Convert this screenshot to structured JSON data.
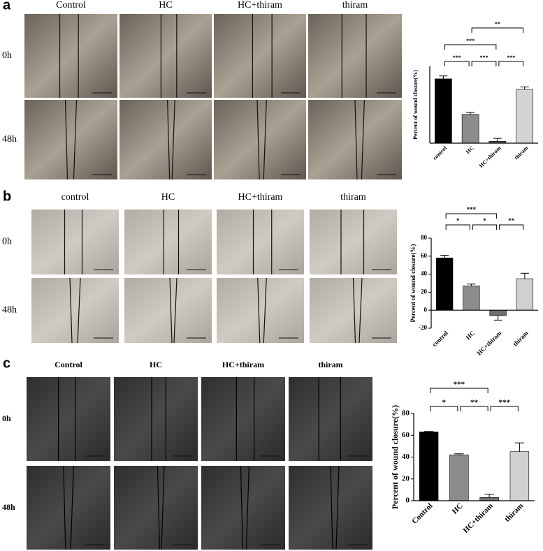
{
  "panels": [
    {
      "label": "a",
      "columns": [
        "Control",
        "HC",
        "HC+thiram",
        "thiram"
      ],
      "rows": [
        "0h",
        "48h"
      ]
    },
    {
      "label": "b",
      "columns": [
        "control",
        "HC",
        "HC+thiram",
        "thiram"
      ],
      "rows": [
        "0h",
        "48h"
      ]
    },
    {
      "label": "c",
      "columns": [
        "Control",
        "HC",
        "HC+thiram",
        "thiram"
      ],
      "rows": [
        "0h",
        "48h"
      ]
    }
  ],
  "chart_data": [
    {
      "type": "bar",
      "y_label": "Percent of wound closure(%)",
      "categories": [
        "control",
        "HC",
        "HC+thiram",
        "thiram"
      ],
      "values": [
        67,
        30,
        2,
        56
      ],
      "errors": [
        3,
        2,
        3,
        2.5
      ],
      "colors": [
        "#000000",
        "#8c8c8c",
        "#5a5a5a",
        "#d4d4d4"
      ],
      "ylim": [
        0,
        80
      ],
      "annotations": [
        {
          "pair": [
            "control",
            "HC"
          ],
          "label": "***"
        },
        {
          "pair": [
            "HC",
            "HC+thiram"
          ],
          "label": "***"
        },
        {
          "pair": [
            "HC+thiram",
            "thiram"
          ],
          "label": "***"
        },
        {
          "pair": [
            "control",
            "HC+thiram"
          ],
          "label": "***"
        },
        {
          "pair": [
            "HC",
            "thiram"
          ],
          "label": "**"
        }
      ]
    },
    {
      "type": "bar",
      "y_label": "Percent of wound closure(%)",
      "categories": [
        "control",
        "HC",
        "HC+thiram",
        "thiram"
      ],
      "values": [
        58,
        27,
        -6,
        35
      ],
      "errors": [
        3,
        2,
        5,
        6
      ],
      "colors": [
        "#000000",
        "#8c8c8c",
        "#6e6e6e",
        "#d0d0d0"
      ],
      "ylim": [
        -20,
        80
      ],
      "yticks": [
        -20,
        0,
        20,
        40,
        60,
        80
      ],
      "annotations": [
        {
          "pair": [
            "control",
            "HC"
          ],
          "label": "*"
        },
        {
          "pair": [
            "HC",
            "HC+thiram"
          ],
          "label": "*"
        },
        {
          "pair": [
            "HC+thiram",
            "thiram"
          ],
          "label": "**"
        },
        {
          "pair": [
            "control",
            "HC+thiram"
          ],
          "label": "***"
        }
      ]
    },
    {
      "type": "bar",
      "y_label": "Percent of wound closure(%)",
      "categories": [
        "Control",
        "HC",
        "HC+thiram",
        "thiram"
      ],
      "values": [
        63,
        42,
        3,
        45
      ],
      "errors": [
        0.5,
        1,
        3,
        8
      ],
      "colors": [
        "#000000",
        "#8c8c8c",
        "#6e6e6e",
        "#d0d0d0"
      ],
      "ylim": [
        0,
        80
      ],
      "yticks": [
        0,
        20,
        40,
        60,
        80
      ],
      "annotations": [
        {
          "pair": [
            "Control",
            "HC"
          ],
          "label": "*"
        },
        {
          "pair": [
            "HC",
            "HC+thiram"
          ],
          "label": "**"
        },
        {
          "pair": [
            "HC+thiram",
            "thiram"
          ],
          "label": "***"
        },
        {
          "pair": [
            "Control",
            "HC+thiram"
          ],
          "label": "***"
        }
      ]
    }
  ]
}
